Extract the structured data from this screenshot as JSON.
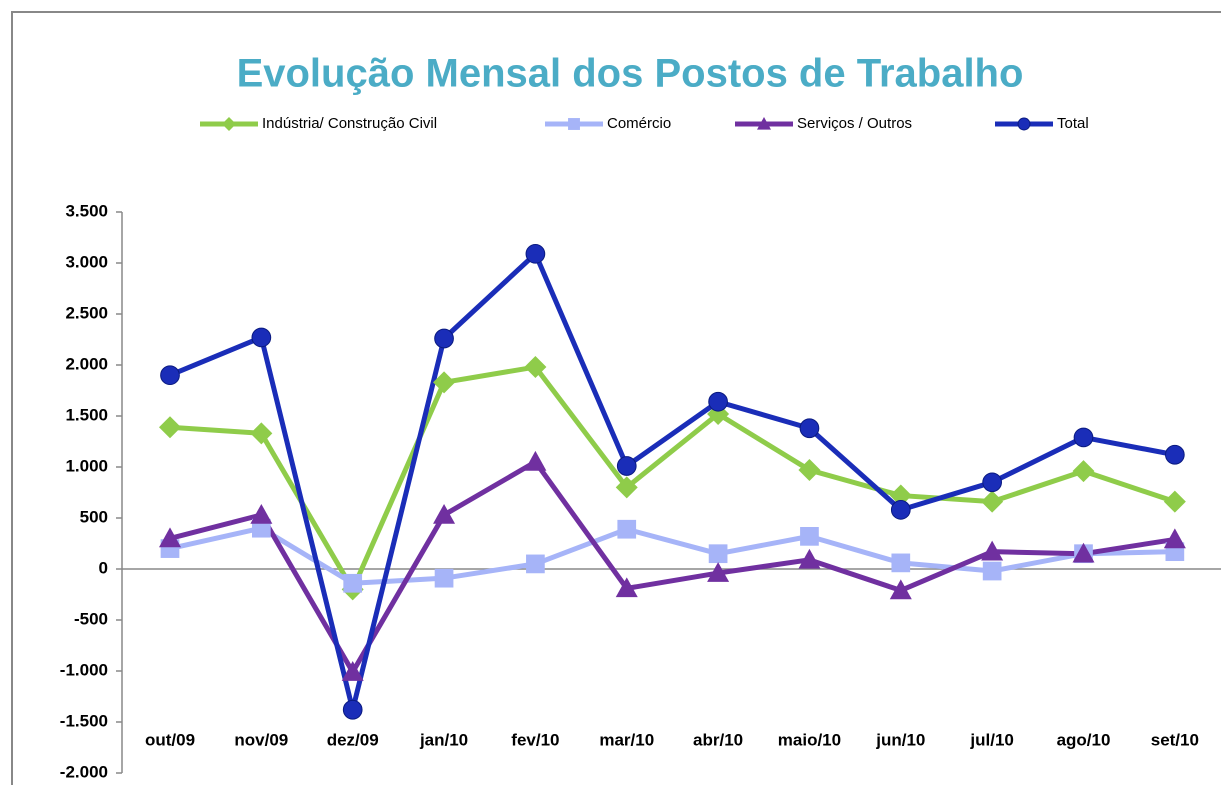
{
  "chart_data": {
    "type": "line",
    "title": "Evolução Mensal dos Postos de Trabalho",
    "categories": [
      "out/09",
      "nov/09",
      "dez/09",
      "jan/10",
      "fev/10",
      "mar/10",
      "abr/10",
      "maio/10",
      "jun/10",
      "jul/10",
      "ago/10",
      "set/10"
    ],
    "series": [
      {
        "name": "Indústria/ Construção Civil",
        "color": "#8fcc4a",
        "marker": "diamond",
        "values": [
          1390,
          1330,
          -200,
          1830,
          1980,
          800,
          1520,
          970,
          720,
          660,
          960,
          660
        ]
      },
      {
        "name": "Comércio",
        "color": "#a6b4f8",
        "marker": "square",
        "values": [
          200,
          400,
          -140,
          -90,
          50,
          390,
          150,
          320,
          60,
          -20,
          150,
          170
        ]
      },
      {
        "name": "Serviços / Outros",
        "color": "#7030a0",
        "marker": "triangle",
        "values": [
          300,
          530,
          -1010,
          530,
          1050,
          -190,
          -40,
          90,
          -210,
          170,
          150,
          290
        ]
      },
      {
        "name": "Total",
        "color": "#1a2db8",
        "marker": "circle",
        "values": [
          1900,
          2270,
          -1380,
          2260,
          3090,
          1010,
          1640,
          1380,
          580,
          850,
          1290,
          1120
        ]
      }
    ],
    "ylim": [
      -2000,
      3500
    ],
    "yticks": [
      {
        "value": 3500,
        "label": "3.500"
      },
      {
        "value": 3000,
        "label": "3.000"
      },
      {
        "value": 2500,
        "label": "2.500"
      },
      {
        "value": 2000,
        "label": "2.000"
      },
      {
        "value": 1500,
        "label": "1.500"
      },
      {
        "value": 1000,
        "label": "1.000"
      },
      500,
      0,
      -500,
      {
        "value": -1000,
        "label": "-1.000"
      },
      {
        "value": -1500,
        "label": "-1.500"
      },
      {
        "value": -2000,
        "label": "-2.000"
      }
    ],
    "legend": "top"
  }
}
